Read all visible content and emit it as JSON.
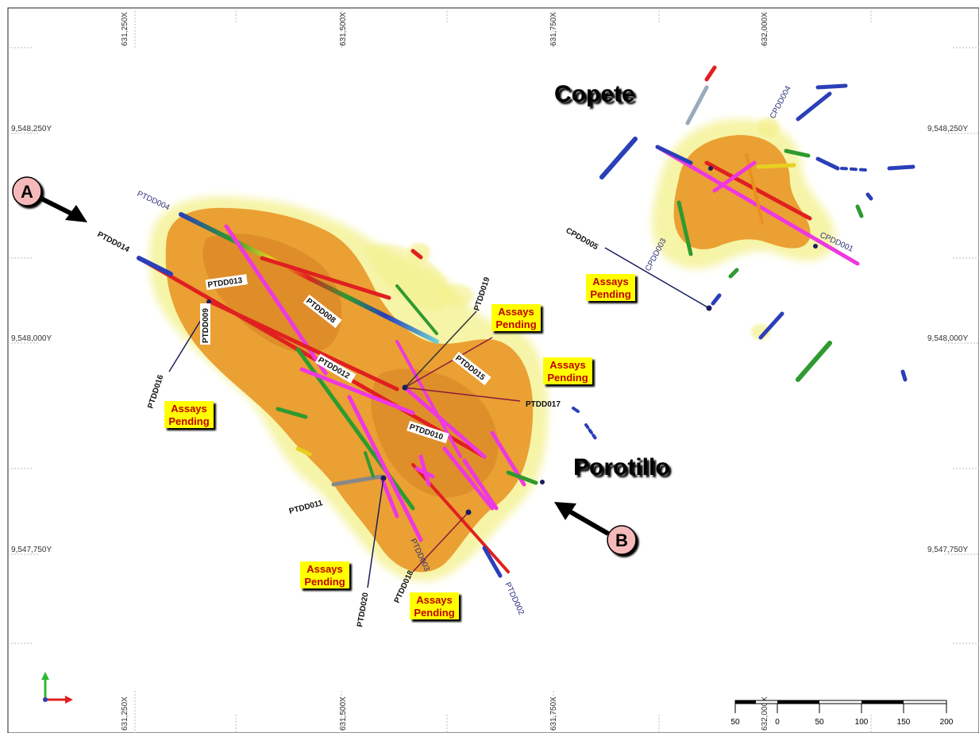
{
  "map": {
    "eastings": [
      "631,250X",
      "631,500X",
      "631,750X",
      "632,000X"
    ],
    "northings": [
      "9,548,250Y",
      "9,548,000Y",
      "9,547,750Y"
    ],
    "prospects": [
      "Copete",
      "Porotillo"
    ],
    "section_markers": [
      "A",
      "B"
    ],
    "pending_label_line1": "Assays",
    "pending_label_line2": "Pending",
    "holes_bold": [
      "PTDD014",
      "PTDD013",
      "PTDD009",
      "PTDD008",
      "PTDD016",
      "PTDD012",
      "PTDD015",
      "PTDD019",
      "PTDD017",
      "PTDD010",
      "PTDD011",
      "PTDD020",
      "PTDD018",
      "CPDD005"
    ],
    "holes_plain": [
      "PTDD004",
      "PTDD003",
      "PTDD002",
      "CPDD004",
      "CPDD003",
      "CPDD001"
    ],
    "scale_bar": {
      "labels": [
        "50",
        "0",
        "50",
        "100",
        "150",
        "200"
      ]
    }
  },
  "colors": {
    "shell_outer": "#f3f08a",
    "shell_inner": "#e8911e",
    "drill_pink": "#ee38e0",
    "drill_red": "#e02020",
    "drill_blue": "#2a3fb8",
    "drill_green": "#2f9a2f",
    "pending_bg": "#ffff00",
    "pending_text": "#c00000",
    "marker_fill": "#f6b9b9"
  }
}
